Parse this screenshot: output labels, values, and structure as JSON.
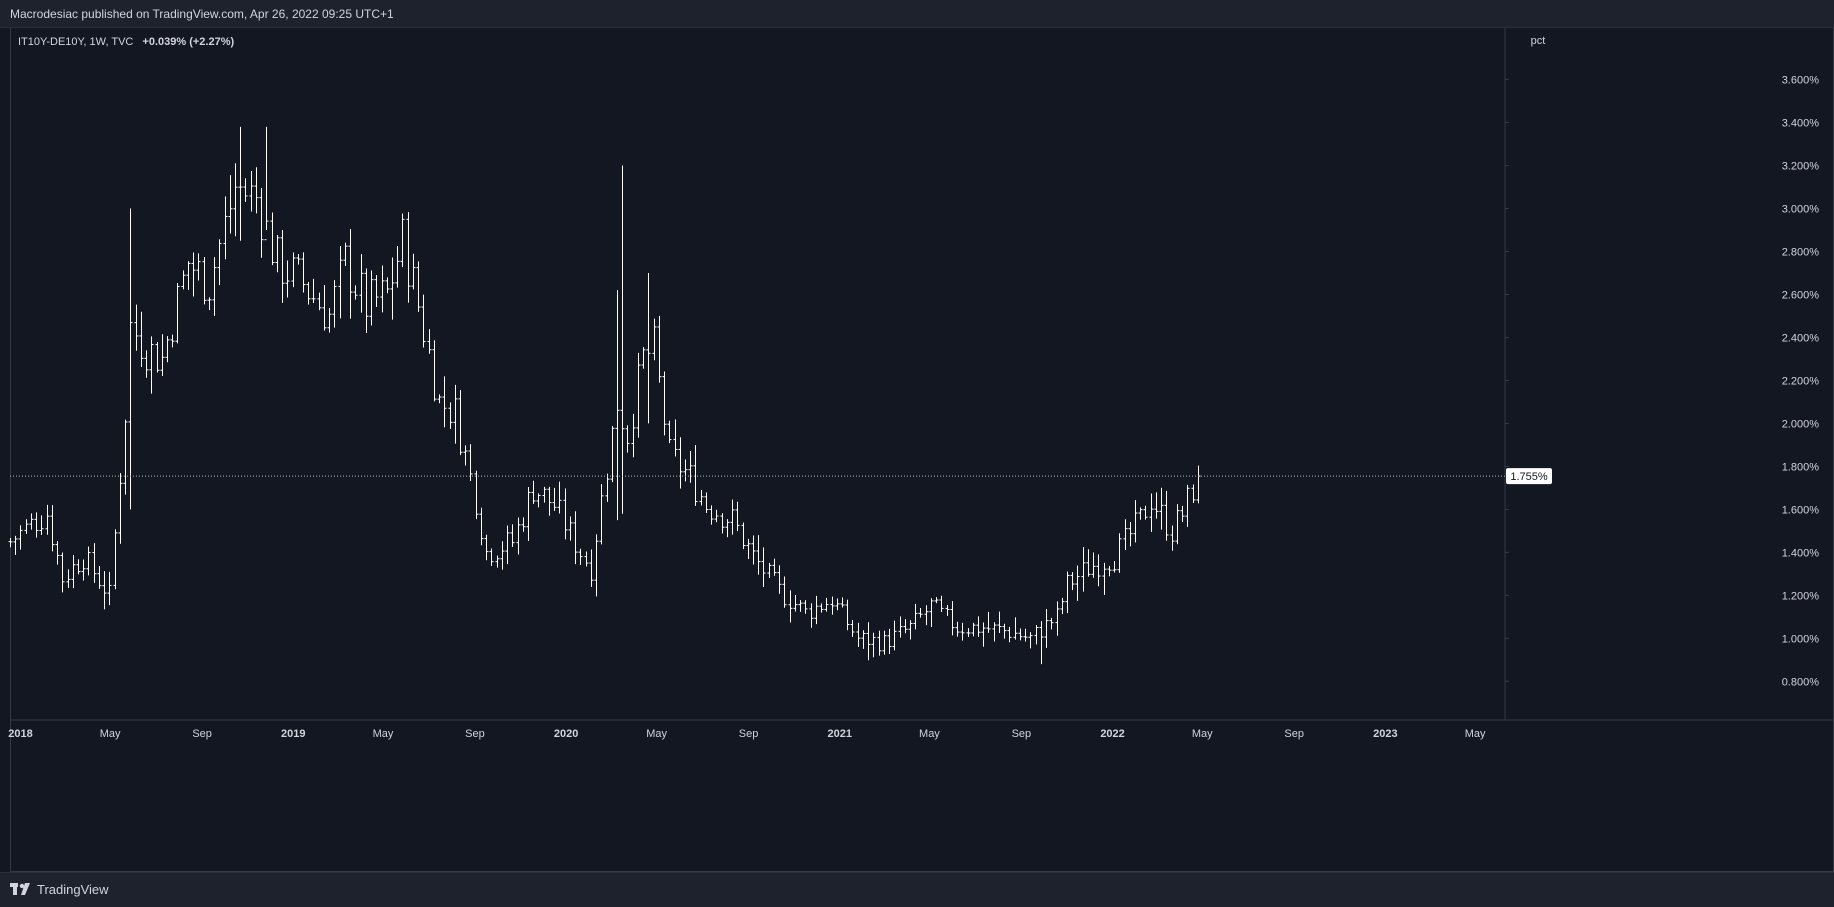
{
  "header": {
    "publish_note": "Macrodesiac published on TradingView.com, Apr 26, 2022 09:25 UTC+1"
  },
  "legend": {
    "symbol": "IT10Y-DE10Y, 1W, TVC",
    "change": "+0.039% (+2.27%)"
  },
  "footer": {
    "brand": "TradingView"
  },
  "colors": {
    "background": "#131722",
    "bars": "#ffffff",
    "grid_axis": "#363a45",
    "price_line": "#b2b5be"
  },
  "chart_data": {
    "type": "ohlc-bars",
    "interval": "1W",
    "unit": "pct",
    "y_axis_unit_label": "pct",
    "ylim": [
      0.62,
      3.84
    ],
    "y_ticks": [
      "0.800%",
      "1.000%",
      "1.200%",
      "1.400%",
      "1.600%",
      "1.800%",
      "2.000%",
      "2.200%",
      "2.400%",
      "2.600%",
      "2.800%",
      "3.000%",
      "3.200%",
      "3.400%",
      "3.600%"
    ],
    "y_tick_values": [
      0.8,
      1.0,
      1.2,
      1.4,
      1.6,
      1.8,
      2.0,
      2.2,
      2.4,
      2.6,
      2.8,
      3.0,
      3.2,
      3.4,
      3.6
    ],
    "x_start": "2017-12-18",
    "x_end": "2023-06-10",
    "x_ticks": [
      {
        "label": "2018",
        "date": "2018-01-01",
        "bold": true
      },
      {
        "label": "May",
        "date": "2018-05-01",
        "bold": false
      },
      {
        "label": "Sep",
        "date": "2018-09-01",
        "bold": false
      },
      {
        "label": "2019",
        "date": "2019-01-01",
        "bold": true
      },
      {
        "label": "May",
        "date": "2019-05-01",
        "bold": false
      },
      {
        "label": "Sep",
        "date": "2019-09-01",
        "bold": false
      },
      {
        "label": "2020",
        "date": "2020-01-01",
        "bold": true
      },
      {
        "label": "May",
        "date": "2020-05-01",
        "bold": false
      },
      {
        "label": "Sep",
        "date": "2020-09-01",
        "bold": false
      },
      {
        "label": "2021",
        "date": "2021-01-01",
        "bold": true
      },
      {
        "label": "May",
        "date": "2021-05-01",
        "bold": false
      },
      {
        "label": "Sep",
        "date": "2021-09-01",
        "bold": false
      },
      {
        "label": "2022",
        "date": "2022-01-01",
        "bold": true
      },
      {
        "label": "May",
        "date": "2022-05-01",
        "bold": false
      },
      {
        "label": "Sep",
        "date": "2022-09-01",
        "bold": false
      },
      {
        "label": "2023",
        "date": "2023-01-01",
        "bold": true
      },
      {
        "label": "May",
        "date": "2023-05-01",
        "bold": false
      }
    ],
    "last_price": 1.755,
    "last_price_label": "1.755%",
    "close_path": [
      {
        "date": "2017-12-18",
        "close": 1.45
      },
      {
        "date": "2018-01-15",
        "close": 1.53
      },
      {
        "date": "2018-02-05",
        "close": 1.58
      },
      {
        "date": "2018-02-26",
        "close": 1.28
      },
      {
        "date": "2018-03-26",
        "close": 1.38
      },
      {
        "date": "2018-04-30",
        "close": 1.2
      },
      {
        "date": "2018-05-21",
        "close": 2.05
      },
      {
        "date": "2018-05-28",
        "close": 2.45
      },
      {
        "date": "2018-06-18",
        "close": 2.35
      },
      {
        "date": "2018-07-09",
        "close": 2.3
      },
      {
        "date": "2018-08-13",
        "close": 2.75
      },
      {
        "date": "2018-09-10",
        "close": 2.65
      },
      {
        "date": "2018-10-15",
        "close": 3.1
      },
      {
        "date": "2018-11-12",
        "close": 3.05
      },
      {
        "date": "2018-12-10",
        "close": 2.75
      },
      {
        "date": "2019-01-14",
        "close": 2.65
      },
      {
        "date": "2019-02-18",
        "close": 2.5
      },
      {
        "date": "2019-03-11",
        "close": 2.75
      },
      {
        "date": "2019-04-08",
        "close": 2.55
      },
      {
        "date": "2019-05-06",
        "close": 2.6
      },
      {
        "date": "2019-05-27",
        "close": 2.85
      },
      {
        "date": "2019-06-17",
        "close": 2.55
      },
      {
        "date": "2019-07-15",
        "close": 2.1
      },
      {
        "date": "2019-08-05",
        "close": 2.05
      },
      {
        "date": "2019-09-02",
        "close": 1.65
      },
      {
        "date": "2019-09-16",
        "close": 1.4
      },
      {
        "date": "2019-10-21",
        "close": 1.45
      },
      {
        "date": "2019-11-18",
        "close": 1.7
      },
      {
        "date": "2019-12-16",
        "close": 1.62
      },
      {
        "date": "2020-01-20",
        "close": 1.4
      },
      {
        "date": "2020-02-03",
        "close": 1.33
      },
      {
        "date": "2020-02-24",
        "close": 1.8
      },
      {
        "date": "2020-03-09",
        "close": 2.1
      },
      {
        "date": "2020-03-23",
        "close": 1.95
      },
      {
        "date": "2020-04-13",
        "close": 2.3
      },
      {
        "date": "2020-04-27",
        "close": 2.35
      },
      {
        "date": "2020-05-18",
        "close": 1.85
      },
      {
        "date": "2020-06-15",
        "close": 1.75
      },
      {
        "date": "2020-07-06",
        "close": 1.62
      },
      {
        "date": "2020-08-10",
        "close": 1.55
      },
      {
        "date": "2020-09-07",
        "close": 1.38
      },
      {
        "date": "2020-10-12",
        "close": 1.22
      },
      {
        "date": "2020-11-16",
        "close": 1.12
      },
      {
        "date": "2020-12-21",
        "close": 1.18
      },
      {
        "date": "2021-01-25",
        "close": 1.0
      },
      {
        "date": "2021-03-01",
        "close": 0.98
      },
      {
        "date": "2021-04-05",
        "close": 1.05
      },
      {
        "date": "2021-05-03",
        "close": 1.15
      },
      {
        "date": "2021-06-07",
        "close": 1.05
      },
      {
        "date": "2021-07-12",
        "close": 1.05
      },
      {
        "date": "2021-08-16",
        "close": 1.03
      },
      {
        "date": "2021-09-13",
        "close": 1.0
      },
      {
        "date": "2021-10-18",
        "close": 1.1
      },
      {
        "date": "2021-11-01",
        "close": 1.25
      },
      {
        "date": "2021-11-29",
        "close": 1.33
      },
      {
        "date": "2022-01-03",
        "close": 1.38
      },
      {
        "date": "2022-02-07",
        "close": 1.55
      },
      {
        "date": "2022-02-21",
        "close": 1.65
      },
      {
        "date": "2022-03-21",
        "close": 1.5
      },
      {
        "date": "2022-04-04",
        "close": 1.58
      },
      {
        "date": "2022-04-25",
        "close": 1.755
      }
    ],
    "range_extremes": [
      {
        "date": "2018-05-28",
        "high": 3.0,
        "low": 1.6
      },
      {
        "date": "2018-10-22",
        "high": 3.38,
        "low": 2.85
      },
      {
        "date": "2018-11-26",
        "high": 3.38,
        "low": 2.9
      },
      {
        "date": "2020-03-09",
        "high": 2.62,
        "low": 1.55
      },
      {
        "date": "2020-03-16",
        "high": 3.2,
        "low": 1.58
      },
      {
        "date": "2020-04-20",
        "high": 2.7,
        "low": 2.0
      },
      {
        "date": "2021-09-27",
        "high": 1.08,
        "low": 0.88
      }
    ]
  }
}
